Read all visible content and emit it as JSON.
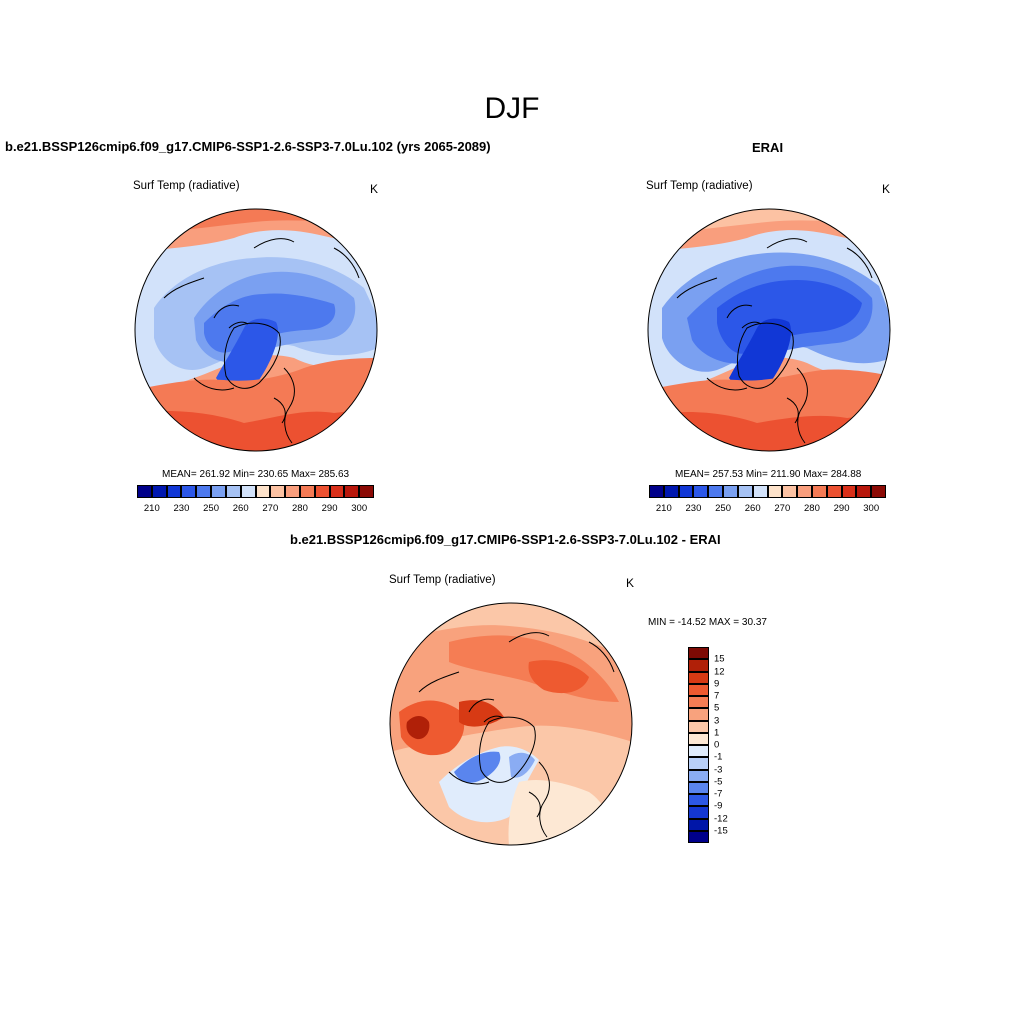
{
  "title": "DJF",
  "variable_label": "Surf Temp (radiative)",
  "units": "K",
  "colors": {
    "abs_palette": [
      "#00008a",
      "#0017b0",
      "#1137d6",
      "#2c57e8",
      "#4d79ee",
      "#7aa0f1",
      "#a6c2f4",
      "#d2e2fa",
      "#fde2ca",
      "#fcc2a3",
      "#f99e7d",
      "#f47a55",
      "#ec5131",
      "#d9301a",
      "#b8170c",
      "#8b0a05"
    ],
    "diff_palette": [
      "#00008a",
      "#0016a8",
      "#1437d2",
      "#2d58e6",
      "#5a85ee",
      "#8aacf3",
      "#b9d0f8",
      "#e0ecfc",
      "#fde8d4",
      "#fbc7a8",
      "#f8a27d",
      "#f57d54",
      "#ee5a30",
      "#d73a14",
      "#b02008",
      "#7d0a04"
    ],
    "coast": "#000000"
  },
  "panels": [
    {
      "heading": "b.e21.BSSP126cmip6.f09_g17.CMIP6-SSP1-2.6-SSP3-7.0Lu.102 (yrs 2065-2089)",
      "variable": "Surf Temp (radiative)",
      "units": "K",
      "stats": "MEAN= 261.92  Min= 230.65  Max= 285.63",
      "colorbar_ticks": [
        "210",
        "230",
        "250",
        "260",
        "270",
        "280",
        "290",
        "300"
      ]
    },
    {
      "heading": "ERAI",
      "variable": "Surf Temp (radiative)",
      "units": "K",
      "stats": "MEAN= 257.53  Min= 211.90  Max= 284.88",
      "colorbar_ticks": [
        "210",
        "230",
        "250",
        "260",
        "270",
        "280",
        "290",
        "300"
      ]
    },
    {
      "heading": "b.e21.BSSP126cmip6.f09_g17.CMIP6-SSP1-2.6-SSP3-7.0Lu.102 - ERAI",
      "variable": "Surf Temp (radiative)",
      "units": "K",
      "minmax": "MIN = -14.52 MAX =  30.37",
      "colorbar_ticks": [
        "15",
        "12",
        "9",
        "7",
        "5",
        "3",
        "1",
        "0",
        "-1",
        "-3",
        "-5",
        "-7",
        "-9",
        "-12",
        "-15"
      ]
    }
  ],
  "chart_data": [
    {
      "type": "heatmap",
      "projection": "north polar stereographic",
      "title": "b.e21.BSSP126cmip6.f09_g17.CMIP6-SSP1-2.6-SSP3-7.0Lu.102 (yrs 2065-2089)",
      "variable": "Surf Temp (radiative)",
      "units": "K",
      "mean": 261.92,
      "min": 230.65,
      "max": 285.63,
      "colorbar_levels": [
        210,
        220,
        230,
        240,
        250,
        255,
        260,
        265,
        270,
        275,
        280,
        285,
        290,
        295,
        300
      ]
    },
    {
      "type": "heatmap",
      "projection": "north polar stereographic",
      "title": "ERAI",
      "variable": "Surf Temp (radiative)",
      "units": "K",
      "mean": 257.53,
      "min": 211.9,
      "max": 284.88,
      "colorbar_levels": [
        210,
        220,
        230,
        240,
        250,
        255,
        260,
        265,
        270,
        275,
        280,
        285,
        290,
        295,
        300
      ]
    },
    {
      "type": "heatmap",
      "projection": "north polar stereographic",
      "title": "b.e21.BSSP126cmip6.f09_g17.CMIP6-SSP1-2.6-SSP3-7.0Lu.102 - ERAI",
      "variable": "Surf Temp (radiative)",
      "units": "K",
      "min": -14.52,
      "max": 30.37,
      "colorbar_levels": [
        -15,
        -12,
        -9,
        -7,
        -5,
        -3,
        -1,
        0,
        1,
        3,
        5,
        7,
        9,
        12,
        15
      ]
    }
  ]
}
